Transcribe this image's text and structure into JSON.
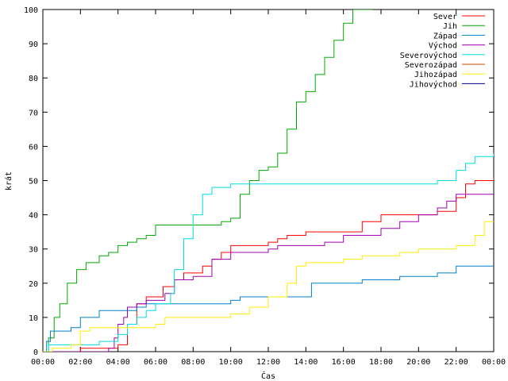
{
  "chart_data": {
    "type": "line",
    "title": "",
    "xlabel": "Čas",
    "ylabel": "krát",
    "xlim": [
      0,
      24
    ],
    "ylim": [
      0,
      100
    ],
    "x_ticks": [
      {
        "v": 0,
        "label": "00:00"
      },
      {
        "v": 2,
        "label": "02:00"
      },
      {
        "v": 4,
        "label": "04:00"
      },
      {
        "v": 6,
        "label": "06:00"
      },
      {
        "v": 8,
        "label": "08:00"
      },
      {
        "v": 10,
        "label": "10:00"
      },
      {
        "v": 12,
        "label": "12:00"
      },
      {
        "v": 14,
        "label": "14:00"
      },
      {
        "v": 16,
        "label": "16:00"
      },
      {
        "v": 18,
        "label": "18:00"
      },
      {
        "v": 20,
        "label": "20:00"
      },
      {
        "v": 22,
        "label": "22:00"
      },
      {
        "v": 24,
        "label": "00:00"
      }
    ],
    "y_ticks": [
      0,
      10,
      20,
      30,
      40,
      50,
      60,
      70,
      80,
      90,
      100
    ],
    "grid": false,
    "legend_position": "top-right",
    "series": [
      {
        "name": "Sever",
        "color": "#ff0000",
        "points": [
          [
            0,
            0
          ],
          [
            2,
            1
          ],
          [
            4,
            2
          ],
          [
            4.5,
            8
          ],
          [
            5,
            14
          ],
          [
            5.5,
            16
          ],
          [
            6.4,
            19
          ],
          [
            7,
            21
          ],
          [
            7.5,
            23
          ],
          [
            8.5,
            25
          ],
          [
            9,
            27
          ],
          [
            9.5,
            29
          ],
          [
            10,
            31
          ],
          [
            12,
            32
          ],
          [
            12.5,
            33
          ],
          [
            13,
            34
          ],
          [
            14,
            35
          ],
          [
            17,
            38
          ],
          [
            18,
            40
          ],
          [
            20,
            40
          ],
          [
            21,
            41
          ],
          [
            22,
            45
          ],
          [
            22.5,
            49
          ],
          [
            23,
            50
          ],
          [
            24,
            51
          ]
        ]
      },
      {
        "name": "Jih",
        "color": "#00aa00",
        "points": [
          [
            0,
            0
          ],
          [
            0.3,
            4
          ],
          [
            0.6,
            10
          ],
          [
            0.9,
            14
          ],
          [
            1.3,
            20
          ],
          [
            1.8,
            24
          ],
          [
            2.3,
            26
          ],
          [
            3,
            28
          ],
          [
            3.5,
            29
          ],
          [
            4,
            31
          ],
          [
            4.5,
            32
          ],
          [
            5,
            33
          ],
          [
            5.5,
            34
          ],
          [
            6,
            37
          ],
          [
            8,
            37
          ],
          [
            9.5,
            38
          ],
          [
            10,
            39
          ],
          [
            10.5,
            46
          ],
          [
            11,
            50
          ],
          [
            11.5,
            53
          ],
          [
            12,
            54
          ],
          [
            12.5,
            58
          ],
          [
            13,
            65
          ],
          [
            13.5,
            73
          ],
          [
            14,
            76
          ],
          [
            14.5,
            81
          ],
          [
            15,
            86
          ],
          [
            15.5,
            91
          ],
          [
            16,
            96
          ],
          [
            16.5,
            100
          ],
          [
            17.5,
            103
          ]
        ]
      },
      {
        "name": "Západ",
        "color": "#0080cc",
        "points": [
          [
            0,
            0
          ],
          [
            0.2,
            3
          ],
          [
            0.4,
            6
          ],
          [
            1,
            6
          ],
          [
            1.5,
            7
          ],
          [
            2,
            10
          ],
          [
            3,
            12
          ],
          [
            4,
            12
          ],
          [
            5,
            13
          ],
          [
            5.5,
            14
          ],
          [
            6,
            14
          ],
          [
            8,
            14
          ],
          [
            9,
            14
          ],
          [
            10,
            15
          ],
          [
            10.5,
            16
          ],
          [
            14,
            16
          ],
          [
            14.3,
            20
          ],
          [
            17,
            21
          ],
          [
            18,
            21
          ],
          [
            19,
            22
          ],
          [
            20,
            22
          ],
          [
            21,
            23
          ],
          [
            22,
            25
          ],
          [
            24,
            25
          ]
        ]
      },
      {
        "name": "Východ",
        "color": "#a000b0",
        "points": [
          [
            0,
            0
          ],
          [
            3,
            0
          ],
          [
            3.5,
            1
          ],
          [
            3.8,
            4
          ],
          [
            4,
            8
          ],
          [
            4.3,
            10
          ],
          [
            4.5,
            13
          ],
          [
            5,
            14
          ],
          [
            5.5,
            15
          ],
          [
            6.5,
            17
          ],
          [
            7,
            21
          ],
          [
            8,
            22
          ],
          [
            9,
            27
          ],
          [
            10,
            29
          ],
          [
            12,
            30
          ],
          [
            12.5,
            31
          ],
          [
            13,
            31
          ],
          [
            15,
            32
          ],
          [
            16,
            34
          ],
          [
            17,
            34
          ],
          [
            18,
            36
          ],
          [
            19,
            38
          ],
          [
            20,
            40
          ],
          [
            21,
            42
          ],
          [
            21.5,
            44
          ],
          [
            22,
            46
          ],
          [
            24,
            46
          ]
        ]
      },
      {
        "name": "Severovýchod",
        "color": "#00dddd",
        "points": [
          [
            0,
            0
          ],
          [
            0.3,
            2
          ],
          [
            1,
            2
          ],
          [
            2,
            2
          ],
          [
            3,
            3
          ],
          [
            3.8,
            3
          ],
          [
            4,
            5
          ],
          [
            4.5,
            8
          ],
          [
            5,
            10
          ],
          [
            5.5,
            12
          ],
          [
            6,
            14
          ],
          [
            6.8,
            17
          ],
          [
            7,
            24
          ],
          [
            7.5,
            33
          ],
          [
            8,
            40
          ],
          [
            8.5,
            46
          ],
          [
            9,
            48
          ],
          [
            10,
            49
          ],
          [
            15,
            49
          ],
          [
            19,
            49
          ],
          [
            20,
            49
          ],
          [
            21,
            50
          ],
          [
            22,
            53
          ],
          [
            22.5,
            55
          ],
          [
            23,
            57
          ],
          [
            24,
            58
          ]
        ]
      },
      {
        "name": "Severozápad",
        "color": "#cc4400",
        "points": []
      },
      {
        "name": "Jihozápad",
        "color": "#ffee00",
        "points": [
          [
            0,
            0
          ],
          [
            0.5,
            1
          ],
          [
            1,
            1
          ],
          [
            1.5,
            2
          ],
          [
            2,
            6
          ],
          [
            2.5,
            7
          ],
          [
            4,
            7
          ],
          [
            5,
            7
          ],
          [
            6,
            8
          ],
          [
            6.5,
            10
          ],
          [
            8,
            10
          ],
          [
            9,
            10
          ],
          [
            10,
            11
          ],
          [
            11,
            13
          ],
          [
            12,
            16
          ],
          [
            13,
            20
          ],
          [
            13.5,
            25
          ],
          [
            14,
            26
          ],
          [
            15,
            26
          ],
          [
            16,
            27
          ],
          [
            17,
            28
          ],
          [
            18,
            28
          ],
          [
            19,
            29
          ],
          [
            20,
            30
          ],
          [
            22,
            31
          ],
          [
            23,
            34
          ],
          [
            23.5,
            38
          ],
          [
            24,
            38
          ]
        ]
      },
      {
        "name": "Jihovýchod",
        "color": "#000088",
        "points": []
      }
    ]
  }
}
